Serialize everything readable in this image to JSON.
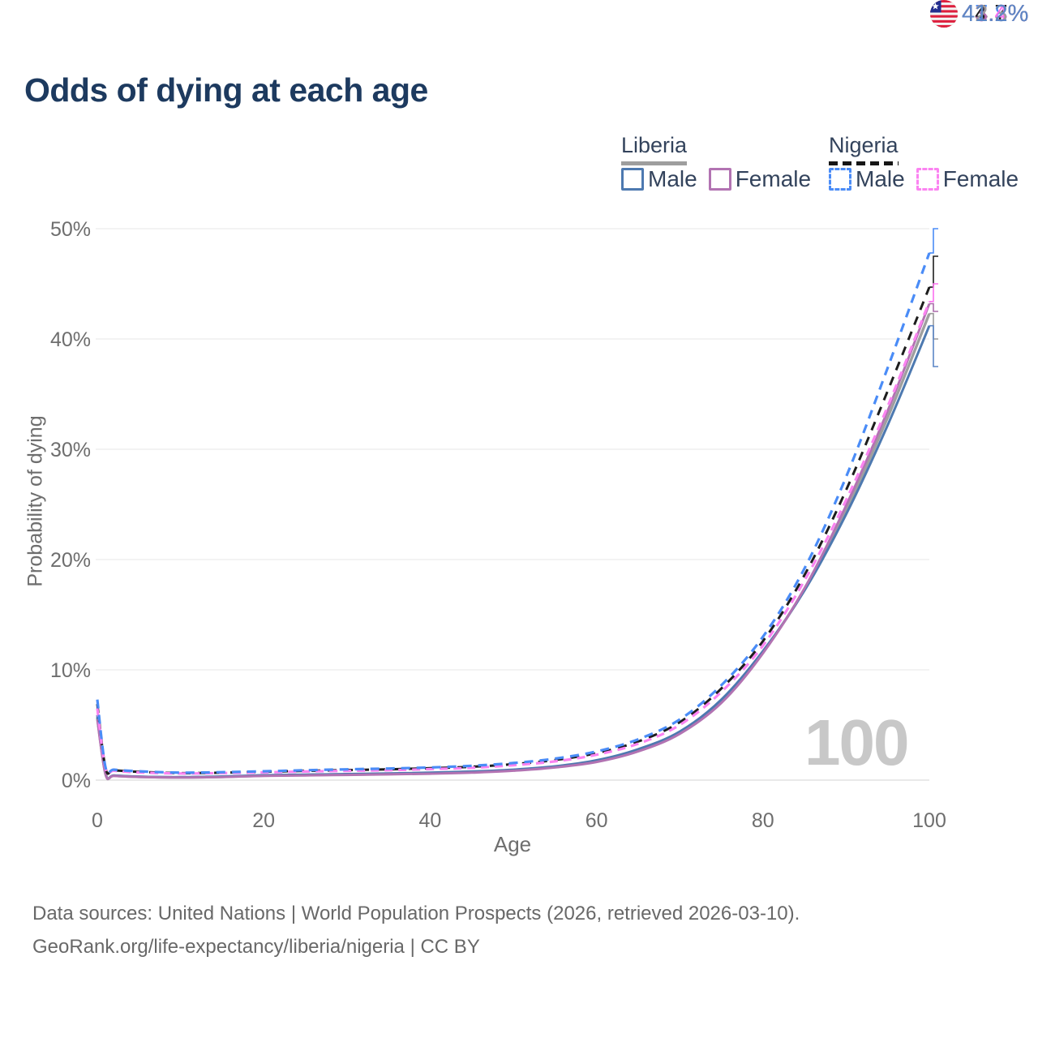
{
  "title": "Odds of dying at each age",
  "legend": {
    "groups": [
      {
        "country": "Liberia",
        "line_style": "solid",
        "underline_color": "#9e9e9e",
        "items": [
          {
            "label": "Male",
            "color": "#4d79b0"
          },
          {
            "label": "Female",
            "color": "#b273b2"
          }
        ]
      },
      {
        "country": "Nigeria",
        "line_style": "dashed",
        "underline_color": "#161616",
        "items": [
          {
            "label": "Male",
            "color": "#4a8cf7"
          },
          {
            "label": "Female",
            "color": "#fb83f1"
          }
        ]
      }
    ]
  },
  "chart_data": {
    "type": "line",
    "title": "Odds of dying at each age",
    "xlabel": "Age",
    "ylabel": "Probability of dying",
    "xlim": [
      0,
      100
    ],
    "ylim": [
      0,
      50
    ],
    "grid": "horizontal",
    "legend_position": "top-right",
    "x_ticks": [
      "0",
      "20",
      "40",
      "60",
      "80",
      "100"
    ],
    "y_ticks": [
      "0%",
      "10%",
      "20%",
      "30%",
      "40%",
      "50%"
    ],
    "x": [
      0,
      1,
      2,
      5,
      10,
      15,
      20,
      25,
      30,
      35,
      40,
      45,
      50,
      55,
      60,
      65,
      70,
      75,
      80,
      85,
      90,
      95,
      100
    ],
    "series": [
      {
        "id": "liberia-both",
        "name": "Liberia",
        "country": "Liberia",
        "sex": "Both",
        "color": "#9f9f9f",
        "dash": "",
        "width": 3.4,
        "values": [
          5.7,
          0.52,
          0.4,
          0.3,
          0.25,
          0.3,
          0.41,
          0.46,
          0.51,
          0.56,
          0.63,
          0.73,
          0.9,
          1.2,
          1.72,
          2.7,
          4.3,
          7.15,
          11.6,
          17.3,
          24.5,
          32.9,
          42.3
        ]
      },
      {
        "id": "liberia-male",
        "name": "Liberia Male",
        "country": "Liberia",
        "sex": "Male",
        "color": "#4d79b0",
        "dash": "",
        "width": 3,
        "values": [
          5.9,
          0.55,
          0.42,
          0.32,
          0.27,
          0.33,
          0.45,
          0.5,
          0.55,
          0.6,
          0.68,
          0.78,
          0.95,
          1.25,
          1.8,
          2.8,
          4.4,
          7.3,
          11.7,
          17.2,
          24.1,
          32.2,
          41.2
        ]
      },
      {
        "id": "liberia-female",
        "name": "Liberia Female",
        "country": "Liberia",
        "sex": "Female",
        "color": "#b273b2",
        "dash": "",
        "width": 3,
        "values": [
          5.5,
          0.5,
          0.38,
          0.29,
          0.24,
          0.28,
          0.38,
          0.43,
          0.47,
          0.52,
          0.58,
          0.68,
          0.85,
          1.15,
          1.65,
          2.6,
          4.2,
          7.0,
          11.5,
          17.4,
          24.9,
          33.5,
          43.2
        ]
      },
      {
        "id": "nigeria-both",
        "name": "Nigeria",
        "country": "Nigeria",
        "sex": "Both",
        "color": "#1d1d1d",
        "dash": "11 9",
        "width": 3,
        "values": [
          6.9,
          1.05,
          0.9,
          0.75,
          0.64,
          0.68,
          0.75,
          0.84,
          0.91,
          0.98,
          1.08,
          1.21,
          1.45,
          1.82,
          2.45,
          3.5,
          5.25,
          8.3,
          12.6,
          18.6,
          26.3,
          35.3,
          44.7
        ]
      },
      {
        "id": "nigeria-female",
        "name": "Nigeria Female",
        "country": "Nigeria",
        "sex": "Female",
        "color": "#fb83f1",
        "dash": "10 7",
        "width": 3.2,
        "values": [
          6.5,
          1.0,
          0.85,
          0.7,
          0.6,
          0.64,
          0.7,
          0.78,
          0.84,
          0.9,
          1.0,
          1.12,
          1.35,
          1.7,
          2.3,
          3.3,
          5.0,
          8.0,
          12.2,
          18.1,
          25.4,
          33.9,
          43.4
        ]
      },
      {
        "id": "nigeria-male",
        "name": "Nigeria Male",
        "country": "Nigeria",
        "sex": "Male",
        "color": "#4a8cf7",
        "dash": "11 8",
        "width": 3.2,
        "values": [
          7.3,
          1.1,
          0.95,
          0.8,
          0.68,
          0.72,
          0.8,
          0.9,
          0.98,
          1.05,
          1.15,
          1.3,
          1.55,
          1.95,
          2.6,
          3.7,
          5.5,
          8.6,
          13.0,
          19.2,
          27.5,
          37.4,
          47.8
        ]
      }
    ]
  },
  "end_labels": [
    {
      "value": "47.8%",
      "series": "nigeria-male",
      "flag": "nigeria",
      "color": "#4a8cf7"
    },
    {
      "value": "44.7%",
      "series": "nigeria-both",
      "flag": "nigeria",
      "color": "#1d1d1d"
    },
    {
      "value": "43.4%",
      "series": "nigeria-female",
      "flag": "nigeria",
      "color": "#fb70ef"
    },
    {
      "value": "43.2%",
      "series": "liberia-female",
      "flag": "liberia",
      "color": "#ac6bac"
    },
    {
      "value": "42.3%",
      "series": "liberia-both",
      "flag": "liberia",
      "color": "#9b9b9b"
    },
    {
      "value": "41.2%",
      "series": "liberia-male",
      "flag": "liberia",
      "color": "#5c86c6"
    }
  ],
  "watermark": "100",
  "footer": {
    "line1": "Data sources: United Nations | World Population Prospects (2026, retrieved 2026-03-10).",
    "line2": "GeoRank.org/life-expectancy/liberia/nigeria | CC BY"
  }
}
